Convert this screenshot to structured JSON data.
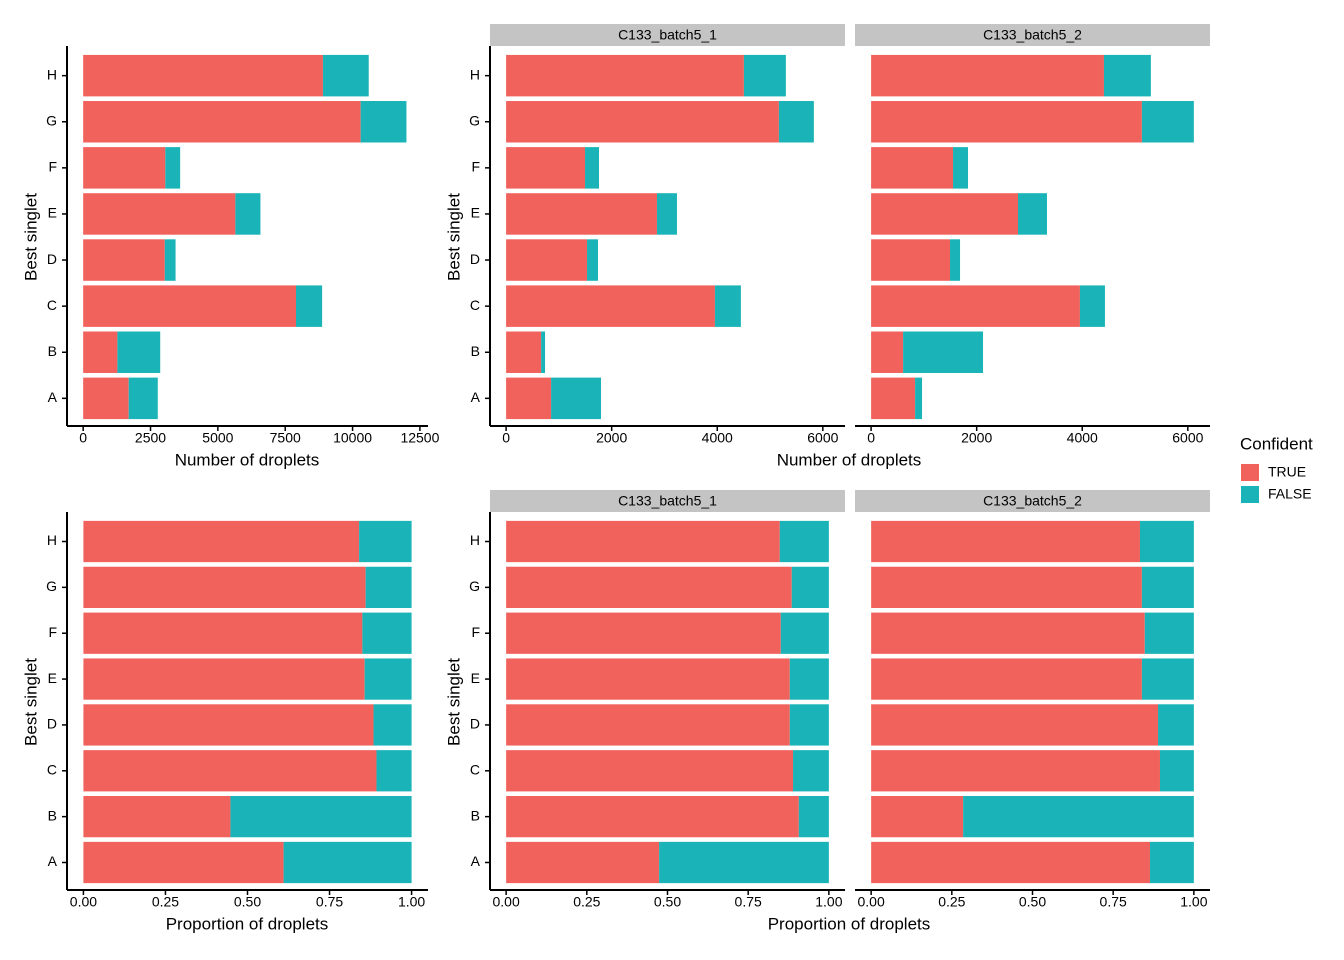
{
  "chart_data": [
    {
      "type": "bar",
      "orientation": "horizontal",
      "stacked": true,
      "y_label": "Best singlet",
      "x_label": "Number of droplets",
      "categories": [
        "A",
        "B",
        "C",
        "D",
        "E",
        "F",
        "G",
        "H"
      ],
      "series": [
        {
          "values": [
            1690,
            1270,
            7900,
            3030,
            5650,
            3050,
            10300,
            8900
          ]
        },
        {
          "values": [
            1080,
            1590,
            970,
            400,
            930,
            550,
            1700,
            1700
          ]
        }
      ],
      "xlim": [
        -600,
        12800
      ],
      "xticks": [
        0,
        2500,
        5000,
        7500,
        10000,
        12500
      ]
    },
    {
      "type": "bar",
      "orientation": "horizontal",
      "stacked": true,
      "title": "C133_batch5_1",
      "y_label": "Best singlet",
      "x_label": "Number of droplets",
      "categories": [
        "A",
        "B",
        "C",
        "D",
        "E",
        "F",
        "G",
        "H"
      ],
      "series": [
        {
          "values": [
            852,
            663,
            3956,
            1533,
            2858,
            1495,
            5168,
            4505
          ]
        },
        {
          "values": [
            946,
            75,
            492,
            208,
            379,
            265,
            662,
            795
          ]
        }
      ],
      "xlim": [
        -305,
        6420
      ],
      "xticks": [
        0,
        2000,
        4000,
        6000
      ]
    },
    {
      "type": "bar",
      "orientation": "horizontal",
      "stacked": true,
      "title": "C133_batch5_2",
      "series": [
        {
          "values": [
            833,
            606,
            3956,
            1495,
            2783,
            1552,
            5130,
            4411
          ]
        },
        {
          "values": [
            132,
            1514,
            474,
            190,
            549,
            284,
            984,
            889
          ]
        }
      ],
      "xlim": [
        -305,
        6420
      ],
      "xticks": [
        0,
        2000,
        4000,
        6000
      ]
    },
    {
      "type": "bar",
      "orientation": "horizontal",
      "stacked": true,
      "y_label": "Best singlet",
      "x_label": "Proportion of droplets",
      "categories": [
        "A",
        "B",
        "C",
        "D",
        "E",
        "F",
        "G",
        "H"
      ],
      "series": [
        {
          "values": [
            0.61,
            0.448,
            0.893,
            0.884,
            0.857,
            0.85,
            0.86,
            0.84
          ]
        },
        {
          "values": [
            0.39,
            0.552,
            0.107,
            0.116,
            0.143,
            0.15,
            0.14,
            0.16
          ]
        }
      ],
      "xlim": [
        -0.05,
        1.05
      ],
      "xticks": [
        {
          "value": 0,
          "label": "0.00"
        },
        {
          "value": 0.25,
          "label": "0.25"
        },
        {
          "value": 0.5,
          "label": "0.50"
        },
        {
          "value": 0.75,
          "label": "0.75"
        },
        {
          "value": 1,
          "label": "1.00"
        }
      ]
    },
    {
      "type": "bar",
      "orientation": "horizontal",
      "stacked": true,
      "title": "C133_batch5_1",
      "y_label": "Best singlet",
      "x_label": "Proportion of droplets",
      "categories": [
        "A",
        "B",
        "C",
        "D",
        "E",
        "F",
        "G",
        "H"
      ],
      "series": [
        {
          "values": [
            0.474,
            0.907,
            0.889,
            0.879,
            0.879,
            0.851,
            0.885,
            0.848
          ]
        },
        {
          "values": [
            0.526,
            0.093,
            0.111,
            0.121,
            0.121,
            0.149,
            0.115,
            0.152
          ]
        }
      ],
      "xlim": [
        -0.05,
        1.05
      ],
      "xticks": [
        {
          "value": 0,
          "label": "0.00"
        },
        {
          "value": 0.25,
          "label": "0.25"
        },
        {
          "value": 0.5,
          "label": "0.50"
        },
        {
          "value": 0.75,
          "label": "0.75"
        },
        {
          "value": 1,
          "label": "1.00"
        }
      ]
    },
    {
      "type": "bar",
      "orientation": "horizontal",
      "stacked": true,
      "title": "C133_batch5_2",
      "series": [
        {
          "values": [
            0.864,
            0.285,
            0.895,
            0.889,
            0.839,
            0.848,
            0.839,
            0.833
          ]
        },
        {
          "values": [
            0.136,
            0.715,
            0.105,
            0.111,
            0.161,
            0.152,
            0.161,
            0.167
          ]
        }
      ],
      "xlim": [
        -0.05,
        1.05
      ],
      "xticks": [
        {
          "value": 0,
          "label": "0.00"
        },
        {
          "value": 0.25,
          "label": "0.25"
        },
        {
          "value": 0.5,
          "label": "0.50"
        },
        {
          "value": 0.75,
          "label": "0.75"
        },
        {
          "value": 1,
          "label": "1.00"
        }
      ]
    }
  ],
  "legend": {
    "title": "Confident",
    "names": [
      "TRUE",
      "FALSE"
    ],
    "colors": [
      "#f2625d",
      "#1ab4b8"
    ]
  }
}
